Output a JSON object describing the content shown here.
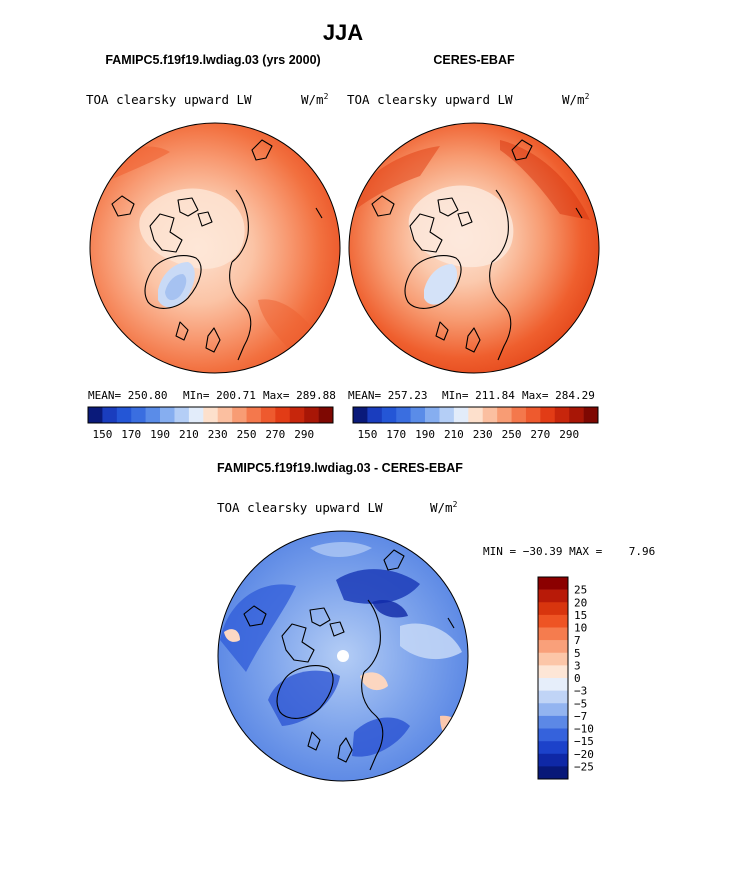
{
  "season": "JJA",
  "panels": [
    {
      "id": "model",
      "title": "FAMIPC5.f19f19.lwdiag.03 (yrs 2000)",
      "variable": "TOA clearsky upward LW",
      "units": "W/m",
      "units_exp": "2",
      "mean_text": "MEAN= 250.80",
      "min_text": "MIn= 200.71",
      "max_text": "Max= 289.88"
    },
    {
      "id": "obs",
      "title": "CERES-EBAF",
      "variable": "TOA clearsky upward LW",
      "units": "W/m",
      "units_exp": "2",
      "mean_text": "MEAN= 257.23",
      "min_text": "MIn= 211.84",
      "max_text": "Max= 284.29"
    }
  ],
  "diff_panel": {
    "title": "FAMIPC5.f19f19.lwdiag.03 - CERES-EBAF",
    "variable": "TOA clearsky upward LW",
    "units": "W/m",
    "units_exp": "2",
    "minmax_text": "MIN = −30.39 MAX =    7.96"
  },
  "chart_data": [
    {
      "type": "heatmap",
      "projection": "north-polar-stereographic",
      "title": "FAMIPC5.f19f19.lwdiag.03 (yrs 2000)",
      "subtitle": "TOA clearsky upward LW",
      "stats": {
        "mean": 250.8,
        "min": 200.71,
        "max": 289.88
      },
      "colorbar": {
        "orientation": "horizontal",
        "tick_labels": [
          "150",
          "170",
          "190",
          "210",
          "230",
          "250",
          "270",
          "290"
        ],
        "colors": [
          "#0a1a7a",
          "#1a3dbe",
          "#2456d6",
          "#3a6ee0",
          "#5a8ce8",
          "#86aef0",
          "#b4cef6",
          "#e2ecfa",
          "#fde0cc",
          "#fbbfa0",
          "#f89c74",
          "#f4784c",
          "#ee5a2e",
          "#e23c16",
          "#c7260c",
          "#a81606",
          "#7e0802"
        ]
      }
    },
    {
      "type": "heatmap",
      "projection": "north-polar-stereographic",
      "title": "CERES-EBAF",
      "subtitle": "TOA clearsky upward LW",
      "stats": {
        "mean": 257.23,
        "min": 211.84,
        "max": 284.29
      },
      "colorbar": {
        "orientation": "horizontal",
        "tick_labels": [
          "150",
          "170",
          "190",
          "210",
          "230",
          "250",
          "270",
          "290"
        ],
        "colors": [
          "#0a1a7a",
          "#1a3dbe",
          "#2456d6",
          "#3a6ee0",
          "#5a8ce8",
          "#86aef0",
          "#b4cef6",
          "#e2ecfa",
          "#fde0cc",
          "#fbbfa0",
          "#f89c74",
          "#f4784c",
          "#ee5a2e",
          "#e23c16",
          "#c7260c",
          "#a81606",
          "#7e0802"
        ]
      }
    },
    {
      "type": "heatmap",
      "projection": "north-polar-stereographic",
      "title": "FAMIPC5.f19f19.lwdiag.03 - CERES-EBAF",
      "subtitle": "TOA clearsky upward LW",
      "stats": {
        "min": -30.39,
        "max": 7.96
      },
      "colorbar": {
        "orientation": "vertical",
        "tick_labels": [
          "25",
          "20",
          "15",
          "10",
          "7",
          "5",
          "3",
          "0",
          "−3",
          "−5",
          "−7",
          "−10",
          "−15",
          "−20",
          "−25"
        ],
        "colors": [
          "#8b0000",
          "#b81a08",
          "#d8350e",
          "#ee5424",
          "#f57c4e",
          "#f9a07a",
          "#fcc6a8",
          "#fde6d6",
          "#e6eefa",
          "#c0d4f6",
          "#93b4f0",
          "#5c88e6",
          "#3562dc",
          "#1c42ca",
          "#0f28a6",
          "#081878"
        ]
      }
    }
  ]
}
